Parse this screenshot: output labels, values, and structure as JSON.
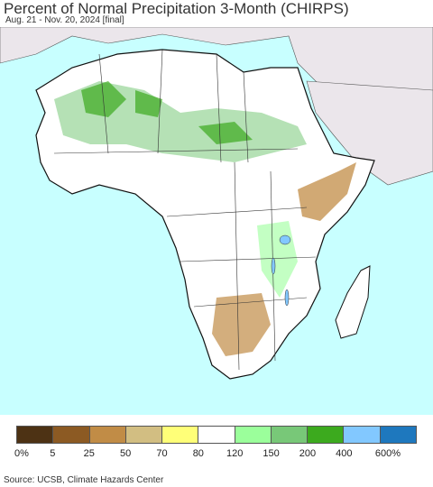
{
  "title": "Percent of Normal Precipitation 3-Month (CHIRPS)",
  "subtitle": "Aug. 21 - Nov. 20, 2024 [final]",
  "source": "Source: UCSB, Climate Hazards Center",
  "legend": {
    "colors": [
      "#4d3214",
      "#8c5a23",
      "#c18c46",
      "#d2be82",
      "#ffff78",
      "#ffffff",
      "#9bff9b",
      "#78c878",
      "#3caa1e",
      "#82c8ff",
      "#1e78be"
    ],
    "labels": [
      "0%",
      "5",
      "25",
      "50",
      "70",
      "80",
      "120",
      "150",
      "200",
      "400",
      "600%"
    ]
  },
  "map": {
    "ocean_color": "#c8ffff",
    "land_color": "#ffffff",
    "outside_region_color": "#ebe6eb",
    "border_color": "#222222"
  }
}
